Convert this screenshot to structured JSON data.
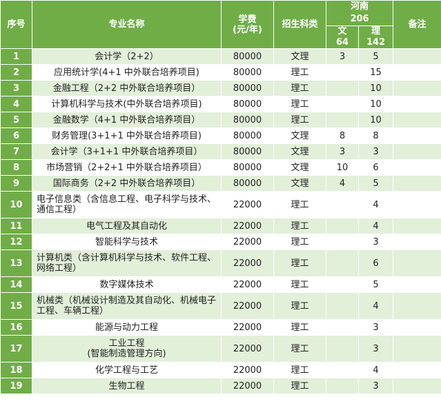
{
  "headers": {
    "seq": "序号",
    "major": "专业名称",
    "fee": "学费\n(元/年)",
    "category": "招生科类",
    "province": "河南",
    "province_total": "206",
    "wen": "文",
    "wen_total": "64",
    "li": "理",
    "li_total": "142",
    "note": "备注"
  },
  "rows": [
    {
      "seq": "1",
      "major": "会计学（2+2）",
      "fee": "80000",
      "category": "文理",
      "wen": "3",
      "li": "5",
      "note": ""
    },
    {
      "seq": "2",
      "major": "应用统计学(4+1 中外联合培养项目)",
      "fee": "80000",
      "category": "理工",
      "wen": "",
      "li": "15",
      "note": ""
    },
    {
      "seq": "3",
      "major": "金融工程（2+2 中外联合培养项目）",
      "fee": "80000",
      "category": "理工",
      "wen": "",
      "li": "10",
      "note": ""
    },
    {
      "seq": "4",
      "major": "计算机科学与技术(中外联合培养项目)",
      "fee": "80000",
      "category": "理工",
      "wen": "",
      "li": "10",
      "note": ""
    },
    {
      "seq": "5",
      "major": "金融数学（4+1 中外联合培养项目）",
      "fee": "80000",
      "category": "理工",
      "wen": "",
      "li": "10",
      "note": ""
    },
    {
      "seq": "6",
      "major": "财务管理(3+1+1 中外联合培养项目)",
      "fee": "80000",
      "category": "文理",
      "wen": "8",
      "li": "8",
      "note": ""
    },
    {
      "seq": "7",
      "major": "会计学（3+1+1 中外联合培养项目）",
      "fee": "80000",
      "category": "文理",
      "wen": "3",
      "li": "3",
      "note": ""
    },
    {
      "seq": "8",
      "major": "市场营销（2+2+1 中外联合培养项目）",
      "fee": "80000",
      "category": "文理",
      "wen": "10",
      "li": "6",
      "note": ""
    },
    {
      "seq": "9",
      "major": "国际商务（2+2 中外联合培养项目）",
      "fee": "80000",
      "category": "文理",
      "wen": "4",
      "li": "5",
      "note": ""
    },
    {
      "seq": "10",
      "major": "电子信息类（含信息工程、电子科学与技术、通信工程）",
      "fee": "22000",
      "category": "理工",
      "wen": "",
      "li": "4",
      "note": "",
      "tall": true
    },
    {
      "seq": "11",
      "major": "电气工程及其自动化",
      "fee": "22000",
      "category": "理工",
      "wen": "",
      "li": "4",
      "note": ""
    },
    {
      "seq": "12",
      "major": "智能科学与技术",
      "fee": "22000",
      "category": "理工",
      "wen": "",
      "li": "3",
      "note": ""
    },
    {
      "seq": "13",
      "major": "计算机类（含计算机科学与技术、软件工程、网络工程）",
      "fee": "22000",
      "category": "理工",
      "wen": "",
      "li": "6",
      "note": "",
      "tall": true
    },
    {
      "seq": "14",
      "major": "数字媒体技术",
      "fee": "22000",
      "category": "理工",
      "wen": "",
      "li": "5",
      "note": ""
    },
    {
      "seq": "15",
      "major": "机械类（机械设计制造及其自动化、机械电子工程、车辆工程）",
      "fee": "22000",
      "category": "理工",
      "wen": "",
      "li": "4",
      "note": "",
      "tall": true
    },
    {
      "seq": "16",
      "major": "能源与动力工程",
      "fee": "22000",
      "category": "理工",
      "wen": "",
      "li": "3",
      "note": ""
    },
    {
      "seq": "17",
      "major": "工业工程\n(智能制造管理方向)",
      "fee": "22000",
      "category": "理工",
      "wen": "",
      "li": "3",
      "note": "",
      "tall": true
    },
    {
      "seq": "18",
      "major": "化学工程与工艺",
      "fee": "22000",
      "category": "理工",
      "wen": "",
      "li": "4",
      "note": ""
    },
    {
      "seq": "19",
      "major": "生物工程",
      "fee": "22000",
      "category": "理工",
      "wen": "",
      "li": "3",
      "note": ""
    }
  ]
}
